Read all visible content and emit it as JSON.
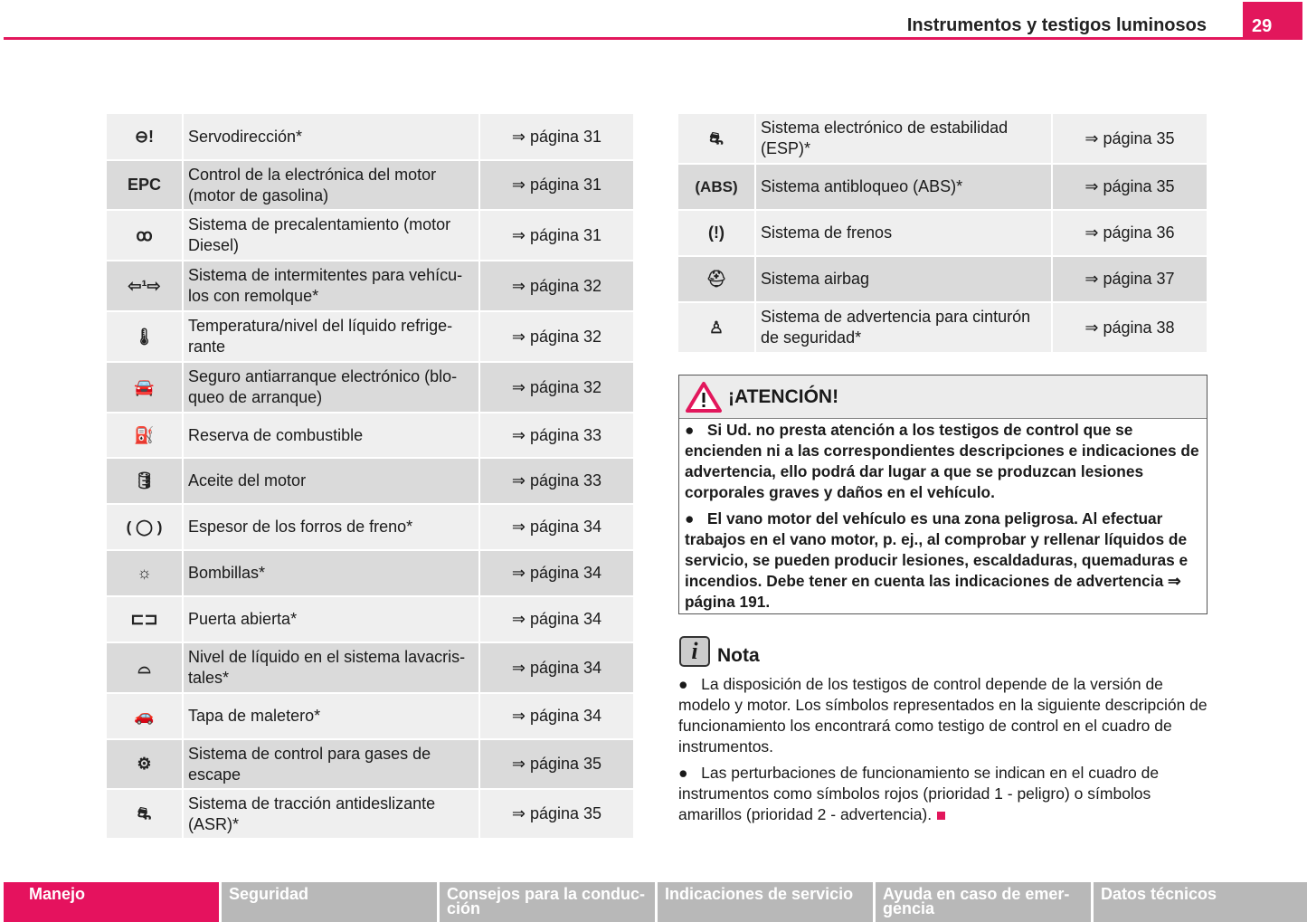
{
  "header": {
    "title": "Instrumentos y testigos luminosos",
    "page_number": "29"
  },
  "left_table": [
    {
      "icon": "power-steering-icon",
      "glyph": "⊖!",
      "text": "Servodirección*",
      "ref": "⇒ página 31"
    },
    {
      "icon": "epc-icon",
      "glyph": "EPC",
      "text": "Control de la electrónica del motor (motor de gasolina)",
      "ref": "⇒ página 31"
    },
    {
      "icon": "glow-plug-icon",
      "glyph": "ꝏ",
      "text": "Sistema de precalentamiento (motor Diesel)",
      "ref": "⇒ página 31"
    },
    {
      "icon": "trailer-turn-signal-icon",
      "glyph": "⇦¹⇨",
      "text": "Sistema de intermitentes para vehícu-los con remolque*",
      "ref": "⇒ página 32"
    },
    {
      "icon": "coolant-temperature-icon",
      "glyph": "🌡",
      "text": "Temperatura/nivel del líquido refrige-rante",
      "ref": "⇒ página 32"
    },
    {
      "icon": "immobilizer-icon",
      "glyph": "🚘",
      "text": "Seguro antiarranque electrónico (blo-queo de arranque)",
      "ref": "⇒ página 32"
    },
    {
      "icon": "fuel-reserve-icon",
      "glyph": "⛽",
      "text": "Reserva de combustible",
      "ref": "⇒ página 33"
    },
    {
      "icon": "oil-can-icon",
      "glyph": "🛢",
      "text": "Aceite del motor",
      "ref": "⇒ página 33"
    },
    {
      "icon": "brake-pad-icon",
      "glyph": "( ◯ )",
      "text": "Espesor de los forros de freno*",
      "ref": "⇒ página 34"
    },
    {
      "icon": "bulb-icon",
      "glyph": "☼",
      "text": "Bombillas*",
      "ref": "⇒ página 34"
    },
    {
      "icon": "door-open-icon",
      "glyph": "⊏⊐",
      "text": "Puerta abierta*",
      "ref": "⇒ página 34"
    },
    {
      "icon": "washer-fluid-icon",
      "glyph": "⌓",
      "text": "Nivel de líquido en el sistema lavacris-tales*",
      "ref": "⇒ página 34"
    },
    {
      "icon": "trunk-lid-icon",
      "glyph": "🚗",
      "text": "Tapa de maletero*",
      "ref": "⇒ página 34"
    },
    {
      "icon": "engine-exhaust-icon",
      "glyph": "⚙",
      "text": "Sistema de control para gases de escape",
      "ref": "⇒ página 35"
    },
    {
      "icon": "traction-control-icon",
      "glyph": "⛐",
      "text": "Sistema de tracción antideslizante (ASR)*",
      "ref": "⇒ página 35"
    }
  ],
  "right_table": [
    {
      "icon": "esp-icon",
      "glyph": "⛐",
      "text": "Sistema electrónico de estabilidad (ESP)*",
      "ref": "⇒ página 35"
    },
    {
      "icon": "abs-icon",
      "glyph": "(ABS)",
      "text": "Sistema antibloqueo (ABS)*",
      "ref": "⇒ página 35"
    },
    {
      "icon": "brake-warning-icon",
      "glyph": "(!)",
      "text": "Sistema de frenos",
      "ref": "⇒ página 36"
    },
    {
      "icon": "airbag-icon",
      "glyph": "⛑",
      "text": "Sistema airbag",
      "ref": "⇒ página 37"
    },
    {
      "icon": "seatbelt-icon",
      "glyph": "♙",
      "text": "Sistema de advertencia para cinturón de seguridad*",
      "ref": "⇒ página 38"
    }
  ],
  "warning": {
    "title": "¡ATENCIÓN!",
    "items": [
      "Si Ud. no presta atención a los testigos de control que se encienden ni a las correspondientes descripciones e indicaciones de advertencia, ello podrá dar lugar a que se produzcan lesiones corporales graves y daños en el vehículo.",
      "El vano motor del vehículo es una zona peligrosa. Al efectuar trabajos en el vano motor, p. ej., al comprobar y rellenar líquidos de servicio, se pueden producir lesiones, escaldaduras, quemaduras e incendios. Debe tener en cuenta las indicaciones de advertencia ⇒ página 191."
    ]
  },
  "note": {
    "title": "Nota",
    "items": [
      "La disposición de los testigos de control depende de la versión de modelo y motor. Los símbolos representados en la siguiente descripción de funcionamiento los encontrará como testigo de control en el cuadro de instrumentos.",
      "Las perturbaciones de funcionamiento se indican en el cuadro de instrumentos como símbolos rojos (prioridad 1 - peligro) o símbolos amarillos (prioridad 2 - advertencia)."
    ]
  },
  "footer_tabs": [
    "Manejo",
    "Seguridad",
    "Consejos para la conduc-ción",
    "Indicaciones de servicio",
    "Ayuda en caso de emer-gencia",
    "Datos técnicos"
  ],
  "colors": {
    "accent": "#e2175c",
    "row_light": "#efefef",
    "row_dark": "#dadada",
    "footer_gray": "#b8b8b8"
  }
}
